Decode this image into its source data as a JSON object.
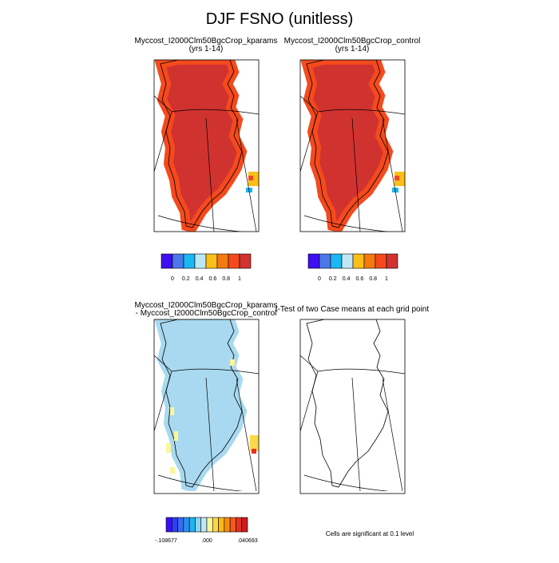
{
  "title": "DJF FSNO (unitless)",
  "panels": [
    {
      "title_lines": [
        "Myccost_I2000Clm50BgcCrop_kparams",
        "(yrs 1-14)"
      ]
    },
    {
      "title_lines": [
        "Myccost_I2000Clm50BgcCrop_control",
        "(yrs 1-14)"
      ]
    },
    {
      "title_lines": [
        "Myccost_I2000Clm50BgcCrop_kparams",
        "- Myccost_I2000Clm50BgcCrop_control"
      ]
    },
    {
      "title_lines": [
        "t-Test of two Case means at each grid point"
      ]
    }
  ],
  "colorbars": [
    {
      "colors": [
        "#3d0ff2",
        "#4a78ea",
        "#1ab7f2",
        "#bde7f4",
        "#fbbf17",
        "#f57a0f",
        "#f44a1d",
        "#d03230"
      ],
      "labels": [
        "0",
        "0.2",
        "0.4",
        "0.6",
        "0.8",
        "1"
      ]
    },
    {
      "colors": [
        "#3d0ff2",
        "#4a78ea",
        "#1ab7f2",
        "#bde7f4",
        "#fbbf17",
        "#f57a0f",
        "#f44a1d",
        "#d03230"
      ],
      "labels": [
        "0",
        "0.2",
        "0.4",
        "0.6",
        "0.8",
        "1"
      ]
    },
    {
      "colors": [
        "#3a0ff5",
        "#2d3ff0",
        "#3a6bee",
        "#2a8ff2",
        "#1fb3f0",
        "#8fd1f3",
        "#bde7f4",
        "#fdf59a",
        "#fbd84a",
        "#fbb917",
        "#f58b0f",
        "#f45a1a",
        "#e43222",
        "#c91d1f"
      ],
      "labels": [
        "-.108677",
        ".000",
        ".040693"
      ]
    }
  ],
  "note": "Cells are significant at 0.1 level"
}
